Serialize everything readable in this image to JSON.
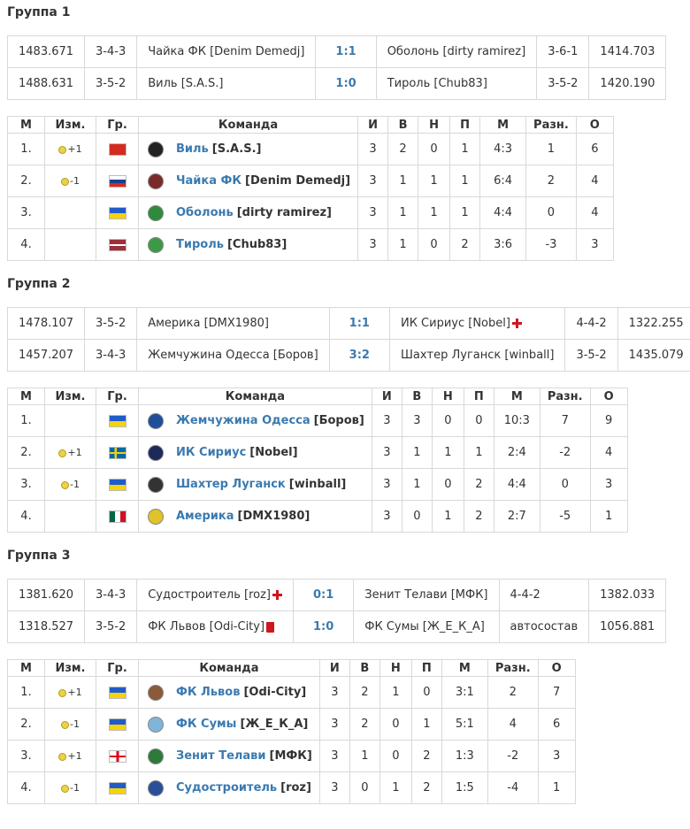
{
  "headers": {
    "m": "М",
    "chg": "Изм.",
    "gr": "Гр.",
    "team": "Команда",
    "i": "И",
    "v": "В",
    "n": "Н",
    "p": "П",
    "goals": "М",
    "diff": "Разн.",
    "o": "О"
  },
  "groups": [
    {
      "title": "Группа 1",
      "matches": [
        {
          "r1": "1483.671",
          "f1": "3-4-3",
          "home": "Чайка ФК [Denim Demedj]",
          "score": "1:1",
          "away": "Оболонь [dirty ramirez]",
          "f2": "3-6-1",
          "r2": "1414.703"
        },
        {
          "r1": "1488.631",
          "f1": "3-5-2",
          "home": "Виль [S.A.S.]",
          "score": "1:0",
          "away": "Тироль [Chub83]",
          "f2": "3-5-2",
          "r2": "1420.190"
        }
      ],
      "rows": [
        {
          "pos": "1.",
          "chg": "+1",
          "team": "Виль",
          "mgr": "[S.A.S.]",
          "i": "3",
          "v": "2",
          "n": "0",
          "p": "1",
          "goals": "4:3",
          "diff": "1",
          "o": "6",
          "flag": "ch",
          "crest": "#222"
        },
        {
          "pos": "2.",
          "chg": "-1",
          "team": "Чайка ФК",
          "mgr": "[Denim Demedj]",
          "i": "3",
          "v": "1",
          "n": "1",
          "p": "1",
          "goals": "6:4",
          "diff": "2",
          "o": "4",
          "flag": "ru",
          "crest": "#7a2a2a"
        },
        {
          "pos": "3.",
          "chg": "",
          "team": "Оболонь",
          "mgr": "[dirty ramirez]",
          "i": "3",
          "v": "1",
          "n": "1",
          "p": "1",
          "goals": "4:4",
          "diff": "0",
          "o": "4",
          "flag": "ua",
          "crest": "#2e8b3e"
        },
        {
          "pos": "4.",
          "chg": "",
          "team": "Тироль",
          "mgr": "[Chub83]",
          "i": "3",
          "v": "1",
          "n": "0",
          "p": "2",
          "goals": "3:6",
          "diff": "-3",
          "o": "3",
          "flag": "lv",
          "crest": "#3c9a46"
        }
      ]
    },
    {
      "title": "Группа 2",
      "matches": [
        {
          "r1": "1478.107",
          "f1": "3-5-2",
          "home": "Америка [DMX1980]",
          "score": "1:1",
          "away": "ИК Сириус [Nobel]",
          "f2": "4-4-2",
          "r2": "1322.255",
          "away_mark": "cross"
        },
        {
          "r1": "1457.207",
          "f1": "3-4-3",
          "home": "Жемчужина Одесса [Боров]",
          "score": "3:2",
          "away": "Шахтер Луганск [winball]",
          "f2": "3-5-2",
          "r2": "1435.079"
        }
      ],
      "rows": [
        {
          "pos": "1.",
          "chg": "",
          "team": "Жемчужина Одесса",
          "mgr": "[Боров]",
          "i": "3",
          "v": "3",
          "n": "0",
          "p": "0",
          "goals": "10:3",
          "diff": "7",
          "o": "9",
          "flag": "ua",
          "crest": "#1f4f9a"
        },
        {
          "pos": "2.",
          "chg": "+1",
          "team": "ИК Сириус",
          "mgr": "[Nobel]",
          "i": "3",
          "v": "1",
          "n": "1",
          "p": "1",
          "goals": "2:4",
          "diff": "-2",
          "o": "4",
          "flag": "se",
          "crest": "#1c2a5a"
        },
        {
          "pos": "3.",
          "chg": "-1",
          "team": "Шахтер Луганск",
          "mgr": "[winball]",
          "i": "3",
          "v": "1",
          "n": "0",
          "p": "2",
          "goals": "4:4",
          "diff": "0",
          "o": "3",
          "flag": "ua",
          "crest": "#333"
        },
        {
          "pos": "4.",
          "chg": "",
          "team": "Америка",
          "mgr": "[DMX1980]",
          "i": "3",
          "v": "0",
          "n": "1",
          "p": "2",
          "goals": "2:7",
          "diff": "-5",
          "o": "1",
          "flag": "mx",
          "crest": "#e0c22a"
        }
      ]
    },
    {
      "title": "Группа 3",
      "matches": [
        {
          "r1": "1381.620",
          "f1": "3-4-3",
          "home": "Судостроитель [roz]",
          "score": "0:1",
          "away": "Зенит Телави [МФК]",
          "f2": "4-4-2",
          "r2": "1382.033",
          "home_mark": "cross"
        },
        {
          "r1": "1318.527",
          "f1": "3-5-2",
          "home": "ФК Львов [Odi-City]",
          "score": "1:0",
          "away": "ФК Сумы [Ж_Е_К_А]",
          "f2": "автосостав",
          "r2": "1056.881",
          "home_mark": "card"
        }
      ],
      "rows": [
        {
          "pos": "1.",
          "chg": "+1",
          "team": "ФК Львов",
          "mgr": "[Odi-City]",
          "i": "3",
          "v": "2",
          "n": "1",
          "p": "0",
          "goals": "3:1",
          "diff": "2",
          "o": "7",
          "flag": "ua",
          "crest": "#8a5a3a"
        },
        {
          "pos": "2.",
          "chg": "-1",
          "team": "ФК Сумы",
          "mgr": "[Ж_Е_К_А]",
          "i": "3",
          "v": "2",
          "n": "0",
          "p": "1",
          "goals": "5:1",
          "diff": "4",
          "o": "6",
          "flag": "ua",
          "crest": "#7fb5d9"
        },
        {
          "pos": "3.",
          "chg": "+1",
          "team": "Зенит Телави",
          "mgr": "[МФК]",
          "i": "3",
          "v": "1",
          "n": "0",
          "p": "2",
          "goals": "1:3",
          "diff": "-2",
          "o": "3",
          "flag": "ge",
          "crest": "#2e7a3a"
        },
        {
          "pos": "4.",
          "chg": "-1",
          "team": "Судостроитель",
          "mgr": "[roz]",
          "i": "3",
          "v": "0",
          "n": "1",
          "p": "2",
          "goals": "1:5",
          "diff": "-4",
          "o": "1",
          "flag": "ua",
          "crest": "#2a4f9a"
        }
      ]
    }
  ]
}
